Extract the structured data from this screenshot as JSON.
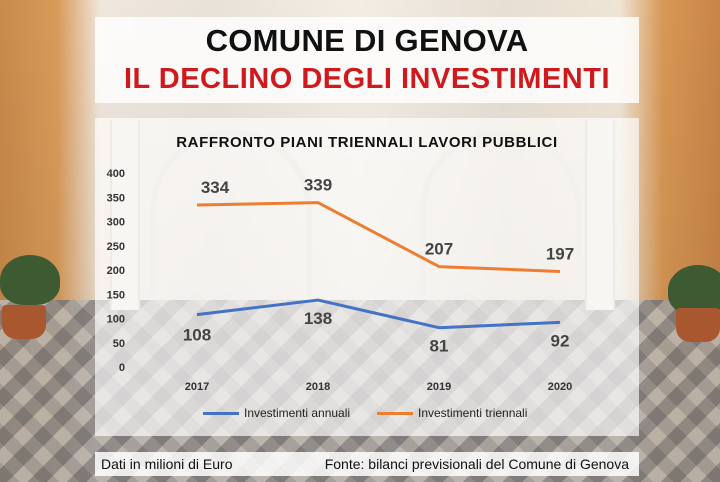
{
  "header": {
    "title": "COMUNE DI GENOVA",
    "subtitle": "IL DECLINO DEGLI INVESTIMENTI",
    "subtitle_color": "#d0191c"
  },
  "chart_data": {
    "type": "line",
    "title": "RAFFRONTO PIANI TRIENNALI LAVORI PUBBLICI",
    "x": [
      "2017",
      "2018",
      "2019",
      "2020"
    ],
    "y_ticks": [
      "0",
      "50",
      "100",
      "150",
      "200",
      "250",
      "300",
      "350",
      "400"
    ],
    "ylim": [
      0,
      400
    ],
    "grid": false,
    "legend": "bottom",
    "series": [
      {
        "name": "Investimenti annuali",
        "values": [
          108,
          138,
          81,
          92
        ],
        "color": "#4472c4"
      },
      {
        "name": "Investimenti triennali",
        "values": [
          334,
          339,
          207,
          197
        ],
        "color": "#ed7d31"
      }
    ]
  },
  "footer": {
    "note": "Dati in milioni di Euro",
    "source": "Fonte: bilanci previsionali del Comune di Genova"
  }
}
